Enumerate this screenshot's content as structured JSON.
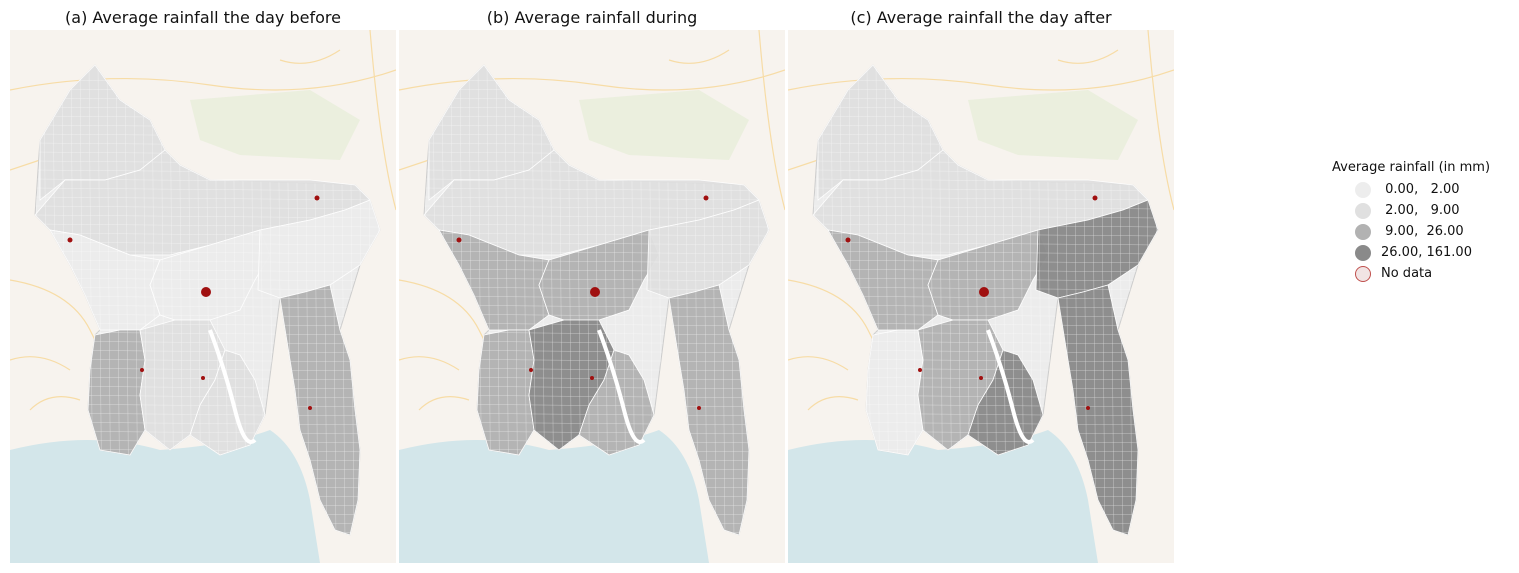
{
  "panels": [
    {
      "title": "(a) Average rainfall the day before",
      "regions": {
        "northeast": "2-9",
        "north": "2-9",
        "central": "0-2",
        "dhaka": "0-2",
        "southwest": "9-26",
        "south_central": "2-9",
        "barisal": "2-9",
        "sylhet": "0-2",
        "chittagong": "9-26"
      }
    },
    {
      "title": "(b) Average rainfall during",
      "regions": {
        "northeast": "2-9",
        "north": "2-9",
        "central": "9-26",
        "dhaka": "9-26",
        "southwest": "9-26",
        "south_central": "26-161",
        "barisal": "9-26",
        "sylhet": "2-9",
        "chittagong": "9-26"
      }
    },
    {
      "title": "(c) Average rainfall the day after",
      "regions": {
        "northeast": "2-9",
        "north": "2-9",
        "central": "9-26",
        "dhaka": "9-26",
        "southwest": "0-2",
        "south_central": "9-26",
        "barisal": "26-161",
        "sylhet": "26-161",
        "chittagong": "26-161"
      }
    }
  ],
  "legend": {
    "title": "Average rainfall (in mm)",
    "items": [
      {
        "label": " 0.00,   2.00",
        "color": "#ededed",
        "edge": "#ededed"
      },
      {
        "label": " 2.00,   9.00",
        "color": "#e0e0e0",
        "edge": "#e0e0e0"
      },
      {
        "label": " 9.00,  26.00",
        "color": "#b2b2b2",
        "edge": "#b2b2b2"
      },
      {
        "label": "26.00, 161.00",
        "color": "#8a8a8a",
        "edge": "#8a8a8a"
      },
      {
        "label": "No data",
        "color": "#f1e4e4",
        "edge": "#c0504d"
      }
    ]
  },
  "class_colors": {
    "0-2": "#ededed",
    "2-9": "#e0e0e0",
    "9-26": "#b2b2b2",
    "26-161": "#8a8a8a"
  },
  "no_data_color": "#a01010",
  "basemap": {
    "land": "#f7f3ee",
    "sea": "#d3e6ea",
    "roads": "#f7dca6",
    "green": "#e9eedb"
  }
}
